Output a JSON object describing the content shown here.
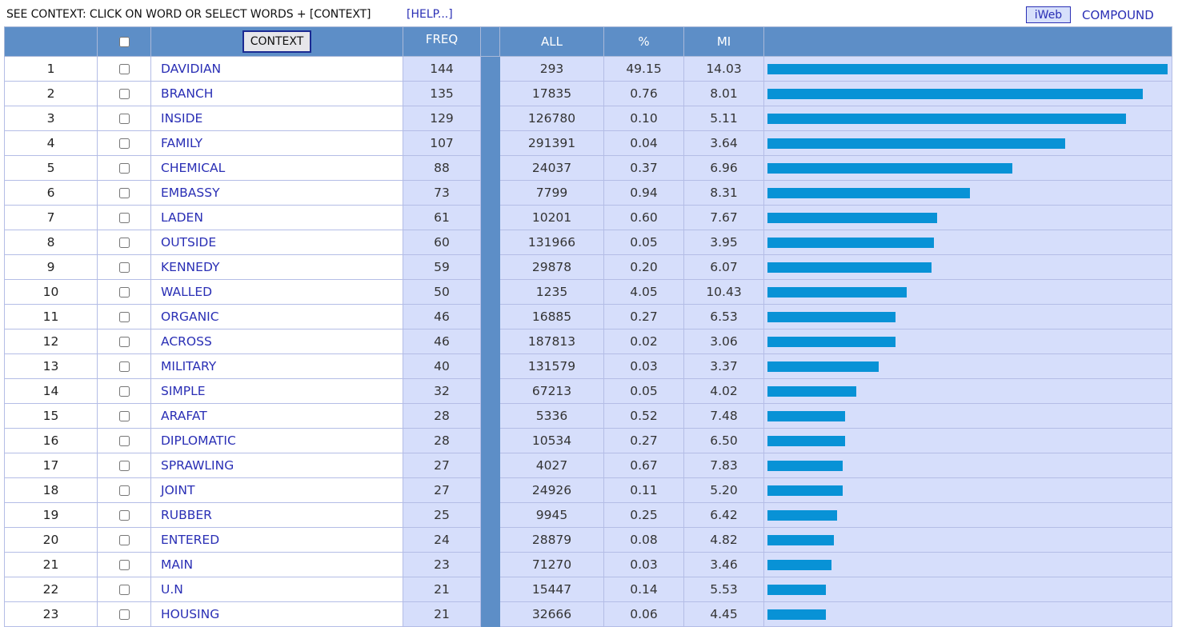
{
  "header": {
    "instruction": "SEE CONTEXT: CLICK ON WORD OR SELECT WORDS + [CONTEXT]",
    "help_link": "[HELP...]",
    "corpus_button": "iWeb",
    "compound_link": "COMPOUND"
  },
  "columns": {
    "context_button": "CONTEXT",
    "freq": "FREQ",
    "all": "ALL",
    "percent": "%",
    "mi": "MI"
  },
  "colors": {
    "header_bg": "#5d8ec7",
    "cell_bg": "#d6defb",
    "link": "#2a2fb5",
    "bar": "#0892d6"
  },
  "max_freq": 144,
  "rows": [
    {
      "rank": "1",
      "word": "DAVIDIAN",
      "freq": "144",
      "all": "293",
      "percent": "49.15",
      "mi": "14.03"
    },
    {
      "rank": "2",
      "word": "BRANCH",
      "freq": "135",
      "all": "17835",
      "percent": "0.76",
      "mi": "8.01"
    },
    {
      "rank": "3",
      "word": "INSIDE",
      "freq": "129",
      "all": "126780",
      "percent": "0.10",
      "mi": "5.11"
    },
    {
      "rank": "4",
      "word": "FAMILY",
      "freq": "107",
      "all": "291391",
      "percent": "0.04",
      "mi": "3.64"
    },
    {
      "rank": "5",
      "word": "CHEMICAL",
      "freq": "88",
      "all": "24037",
      "percent": "0.37",
      "mi": "6.96"
    },
    {
      "rank": "6",
      "word": "EMBASSY",
      "freq": "73",
      "all": "7799",
      "percent": "0.94",
      "mi": "8.31"
    },
    {
      "rank": "7",
      "word": "LADEN",
      "freq": "61",
      "all": "10201",
      "percent": "0.60",
      "mi": "7.67"
    },
    {
      "rank": "8",
      "word": "OUTSIDE",
      "freq": "60",
      "all": "131966",
      "percent": "0.05",
      "mi": "3.95"
    },
    {
      "rank": "9",
      "word": "KENNEDY",
      "freq": "59",
      "all": "29878",
      "percent": "0.20",
      "mi": "6.07"
    },
    {
      "rank": "10",
      "word": "WALLED",
      "freq": "50",
      "all": "1235",
      "percent": "4.05",
      "mi": "10.43"
    },
    {
      "rank": "11",
      "word": "ORGANIC",
      "freq": "46",
      "all": "16885",
      "percent": "0.27",
      "mi": "6.53"
    },
    {
      "rank": "12",
      "word": "ACROSS",
      "freq": "46",
      "all": "187813",
      "percent": "0.02",
      "mi": "3.06"
    },
    {
      "rank": "13",
      "word": "MILITARY",
      "freq": "40",
      "all": "131579",
      "percent": "0.03",
      "mi": "3.37"
    },
    {
      "rank": "14",
      "word": "SIMPLE",
      "freq": "32",
      "all": "67213",
      "percent": "0.05",
      "mi": "4.02"
    },
    {
      "rank": "15",
      "word": "ARAFAT",
      "freq": "28",
      "all": "5336",
      "percent": "0.52",
      "mi": "7.48"
    },
    {
      "rank": "16",
      "word": "DIPLOMATIC",
      "freq": "28",
      "all": "10534",
      "percent": "0.27",
      "mi": "6.50"
    },
    {
      "rank": "17",
      "word": "SPRAWLING",
      "freq": "27",
      "all": "4027",
      "percent": "0.67",
      "mi": "7.83"
    },
    {
      "rank": "18",
      "word": "JOINT",
      "freq": "27",
      "all": "24926",
      "percent": "0.11",
      "mi": "5.20"
    },
    {
      "rank": "19",
      "word": "RUBBER",
      "freq": "25",
      "all": "9945",
      "percent": "0.25",
      "mi": "6.42"
    },
    {
      "rank": "20",
      "word": "ENTERED",
      "freq": "24",
      "all": "28879",
      "percent": "0.08",
      "mi": "4.82"
    },
    {
      "rank": "21",
      "word": "MAIN",
      "freq": "23",
      "all": "71270",
      "percent": "0.03",
      "mi": "3.46"
    },
    {
      "rank": "22",
      "word": "U.N",
      "freq": "21",
      "all": "15447",
      "percent": "0.14",
      "mi": "5.53"
    },
    {
      "rank": "23",
      "word": "HOUSING",
      "freq": "21",
      "all": "32666",
      "percent": "0.06",
      "mi": "4.45"
    }
  ]
}
